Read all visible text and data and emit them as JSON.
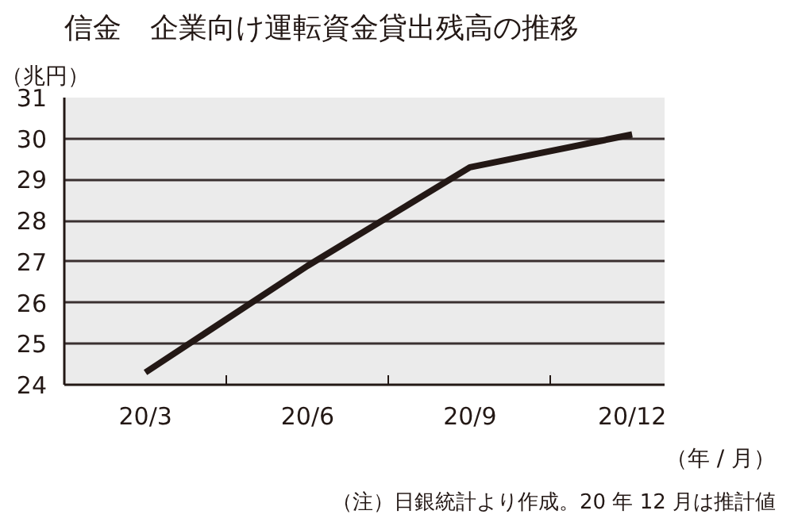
{
  "chart_data": {
    "type": "line",
    "title": "信金　企業向け運転資金貸出残高の推移",
    "ylabel": "（兆円）",
    "xlabel": "（年 / 月）",
    "categories": [
      "20/3",
      "20/6",
      "20/9",
      "20/12"
    ],
    "series": [
      {
        "color": "#231815",
        "values": [
          24.3,
          26.9,
          29.3,
          30.1
        ]
      }
    ],
    "ylim": [
      24,
      31
    ],
    "yticks": [
      24,
      25,
      26,
      27,
      28,
      29,
      30,
      31
    ],
    "grid": "y",
    "annotations": [
      "（注）日銀統計より作成。20 年 12 月は推計値"
    ]
  }
}
